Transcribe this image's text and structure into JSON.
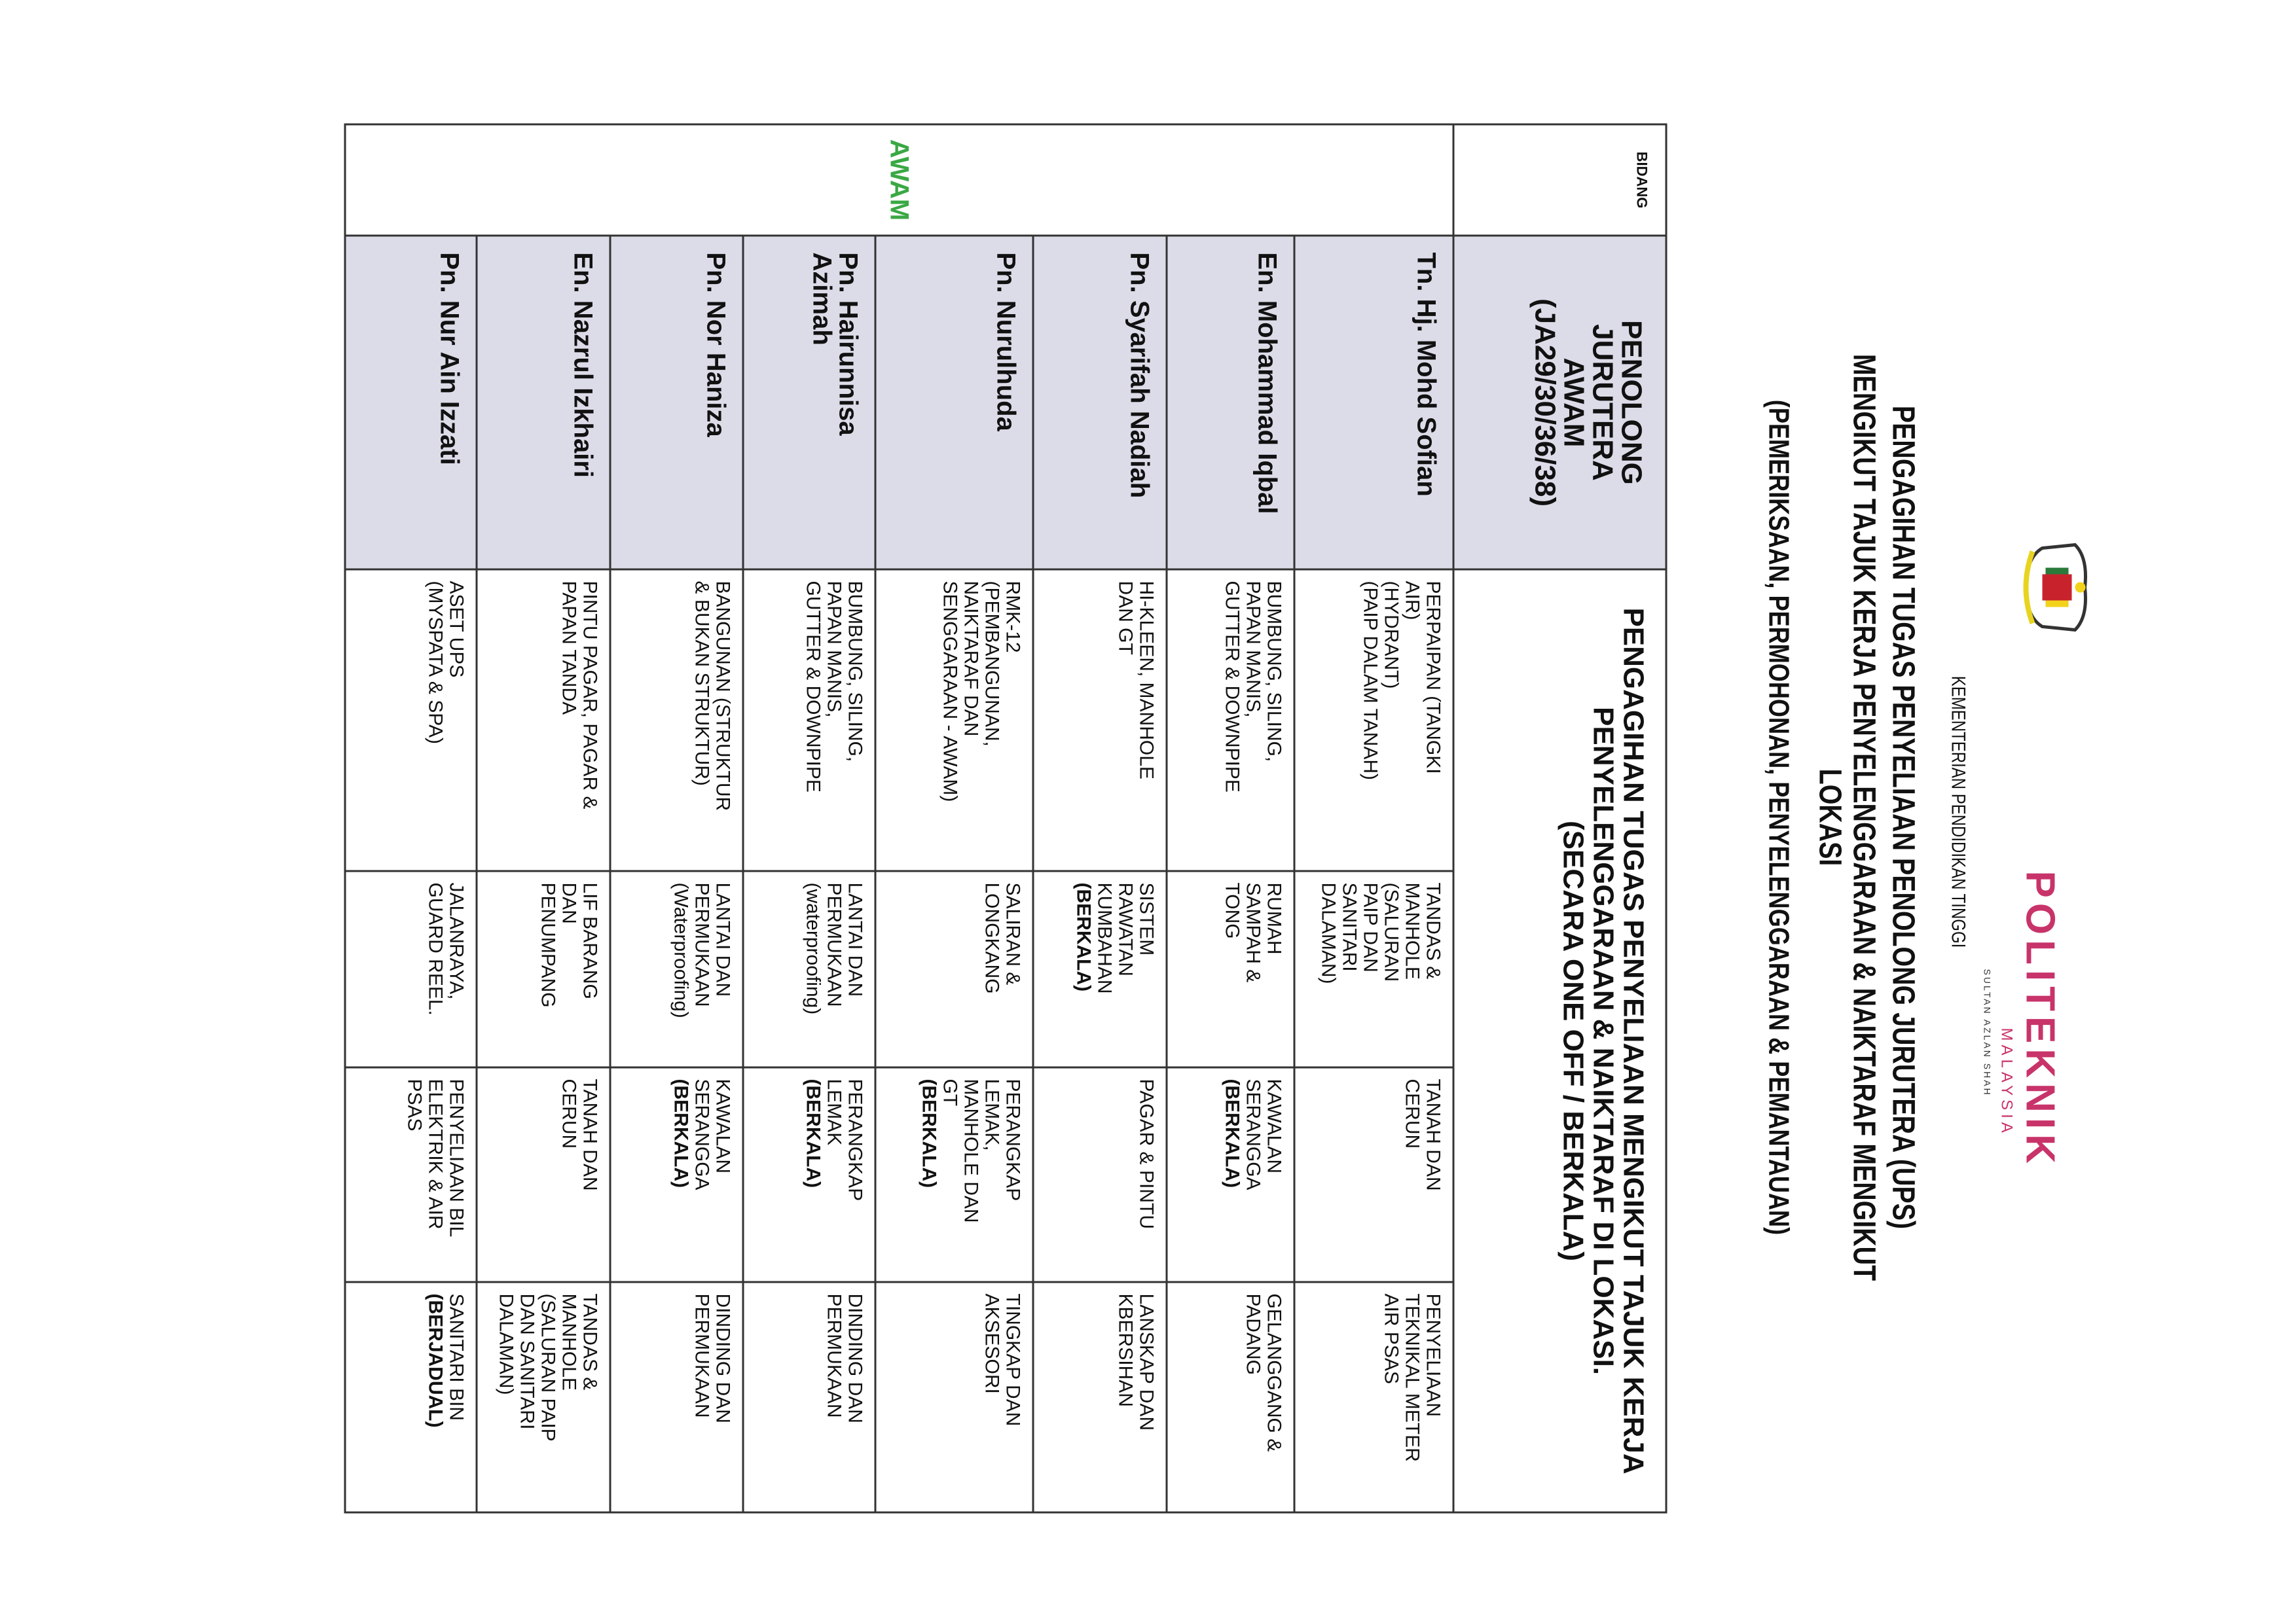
{
  "header": {
    "ministry": "KEMENTERIAN PENDIDIKAN TINGGI",
    "title_lines": [
      "PENGAGIHAN TUGAS PENYELIAAN PENOLONG JURUTERA (UPS)",
      "MENGIKUT TAJUK KERJA PENYELENGGARAAN & NAIKTARAF MENGIKUT",
      "LOKASI"
    ],
    "subtitle": "(PEMERIKSAAN, PERMOHONAN, PENYELENGGARAAN & PEMANTAUAN)",
    "logo_crest": "malaysia-coat-of-arms",
    "logo_politeknik": {
      "name": "POLITEKNIK",
      "country": "MALAYSIA",
      "campus": "SULTAN AZLAN SHAH",
      "color": "#c8336a"
    }
  },
  "table": {
    "bidang_label": "BIDANG",
    "post_label": "PENOLONG\nJURUTERA\nAWAM\n(JA29/30/36/38)",
    "header": "PENGAGIHAN TUGAS PENYELIAAN MENGIKUT TAJUK KERJA\nPENYELENGGARAAN & NAIKTARAF  DI LOKASI.\n(SECARA ONE OFF / BERKALA)",
    "field": "AWAM",
    "field_color": "#3aa844",
    "rows": [
      {
        "name": "Tn. Hj. Mohd Sofian",
        "cells": [
          {
            "text": "PERPAIPAN  (TANGKI\nAIR)\n(HYDRANT)\n(PAIP DALAM TANAH)"
          },
          {
            "text": "TANDAS &\nMANHOLE\n(SALURAN\nPAIP DAN\nSANITARI\nDALAMAN)"
          },
          {
            "text": "TANAH DAN\nCERUN"
          },
          {
            "text": "PENYELIAAN\nTEKNIKAL METER\nAIR PSAS"
          }
        ]
      },
      {
        "name": "En. Mohammad Iqbal",
        "cells": [
          {
            "text": "BUMBUNG, SILING,\nPAPAN MANIS,\nGUTTER & DOWNPIPE"
          },
          {
            "text": "RUMAH\nSAMPAH &\nTONG"
          },
          {
            "text": "KAWALAN\nSERANGGA",
            "bold": "(BERKALA)"
          },
          {
            "text": "GELANGGANG &\nPADANG"
          }
        ]
      },
      {
        "name": "Pn. Syarifah Nadiah",
        "cells": [
          {
            "text": "HI-KLEEN, MANHOLE\nDAN GT"
          },
          {
            "text": "SISTEM\nRAWATAN\nKUMBAHAN",
            "bold": "(BERKALA)"
          },
          {
            "text": "PAGAR & PINTU"
          },
          {
            "text": "LANSKAP DAN\nKBERSIHAN"
          }
        ]
      },
      {
        "name": "Pn. Nurulhuda",
        "cells": [
          {
            "text": "RMK-12\n(PEMBANGUNAN,\nNAIKTARAF DAN\nSENGGARAAN - AWAM)"
          },
          {
            "text": "SALIRAN &\nLONGKANG"
          },
          {
            "text": "PERANGKAP\nLEMAK,\nMANHOLE DAN\nGT",
            "bold": "(BERKALA)"
          },
          {
            "text": "TINGKAP DAN\nAKSESORI"
          }
        ]
      },
      {
        "name": "Pn. Hairunnisa\nAzimah",
        "cells": [
          {
            "text": "BUMBUNG, SILING,\nPAPAN MANIS,\nGUTTER & DOWNPIPE"
          },
          {
            "text": "LANTAI DAN\nPERMUKAAN\n(waterproofing)"
          },
          {
            "text": "PERANGKAP\nLEMAK",
            "bold": "(BERKALA)"
          },
          {
            "text": "DINDING DAN\nPERMUKAAN"
          }
        ]
      },
      {
        "name": "Pn. Nor Haniza",
        "cells": [
          {
            "text": "BANGUNAN (STRUKTUR\n& BUKAN STRUKTUR)"
          },
          {
            "text": "LANTAI DAN\nPERMUKAAN\n(Waterproofing)"
          },
          {
            "text": "KAWALAN\nSERANGGA",
            "bold": "(BERKALA)"
          },
          {
            "text": "DINDING DAN\nPERMUKAAN"
          }
        ]
      },
      {
        "name": "En. Nazrul Izkhairi",
        "cells": [
          {
            "text": "PINTU PAGAR, PAGAR &\nPAPAN TANDA"
          },
          {
            "text": "LIF BARANG\nDAN\nPENUMPANG"
          },
          {
            "text": "TANAH DAN\nCERUN"
          },
          {
            "text": "TANDAS &\nMANHOLE\n(SALURAN PAIP\nDAN SANITARI\nDALAMAN)"
          }
        ]
      },
      {
        "name": "Pn. Nur Ain Izzati",
        "cells": [
          {
            "text": "ASET UPS\n(MYSPATA & SPA)"
          },
          {
            "text": "JALANRAYA,\nGUARD REEL."
          },
          {
            "text": "PENYELIAAN BIL\nELEKTRIK & AIR\nPSAS"
          },
          {
            "text": "SANITARI BIN",
            "bold": "(BERJADUAL)"
          }
        ]
      }
    ]
  }
}
